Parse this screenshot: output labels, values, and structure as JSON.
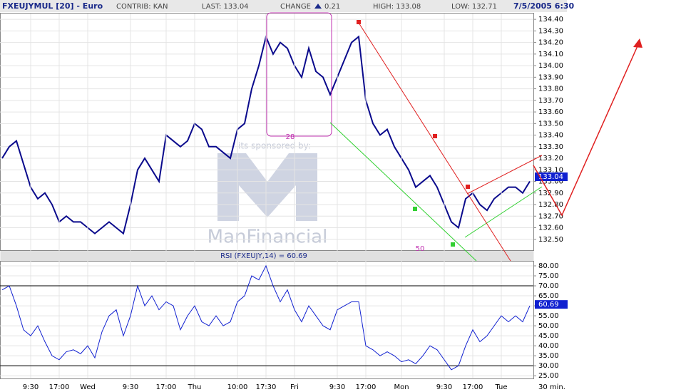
{
  "header": {
    "symbol": "FXEUJYMUL [20] - Euro",
    "contrib": "CONTRIB: KAN",
    "last": "LAST: 133.04",
    "change_label": "CHANGE",
    "change": "0.21",
    "high": "HIGH: 133.08",
    "low": "LOW: 132.71",
    "datetime": "7/5/2005 6:30"
  },
  "chart_data": [
    {
      "type": "line",
      "series": [
        {
          "name": "FXEUJYMUL",
          "color": "#0a0a8c",
          "values": [
            133.2,
            133.3,
            133.35,
            133.15,
            132.95,
            132.85,
            132.9,
            132.8,
            132.65,
            132.7,
            132.65,
            132.65,
            132.6,
            132.55,
            132.6,
            132.65,
            132.6,
            132.55,
            132.8,
            133.1,
            133.2,
            133.1,
            133.0,
            133.4,
            133.35,
            133.3,
            133.35,
            133.5,
            133.45,
            133.3,
            133.3,
            133.25,
            133.2,
            133.45,
            133.5,
            133.8,
            134.0,
            134.25,
            134.1,
            134.2,
            134.15,
            134.0,
            133.9,
            134.15,
            133.95,
            133.9,
            133.75,
            133.9,
            134.05,
            134.2,
            134.25,
            133.7,
            133.5,
            133.4,
            133.45,
            133.3,
            133.2,
            133.1,
            132.95,
            133.0,
            133.05,
            132.95,
            132.8,
            132.65,
            132.6,
            132.85,
            132.9,
            132.8,
            132.75,
            132.85,
            132.9,
            132.95,
            132.95,
            132.9,
            133.0
          ]
        }
      ],
      "ylim": [
        132.4,
        134.45
      ],
      "yticks": [
        {
          "value": 132.5,
          "label": "132.50"
        },
        {
          "value": 132.6,
          "label": "132.60"
        },
        {
          "value": 132.7,
          "label": "132.70"
        },
        {
          "value": 132.8,
          "label": "132.80"
        },
        {
          "value": 132.9,
          "label": "132.90"
        },
        {
          "value": 133.0,
          "label": "133.00"
        },
        {
          "value": 133.1,
          "label": "133.10"
        },
        {
          "value": 133.2,
          "label": "133.20"
        },
        {
          "value": 133.3,
          "label": "133.30"
        },
        {
          "value": 133.4,
          "label": "133.40"
        },
        {
          "value": 133.5,
          "label": "133.50"
        },
        {
          "value": 133.6,
          "label": "133.60"
        },
        {
          "value": 133.7,
          "label": "133.70"
        },
        {
          "value": 133.8,
          "label": "133.80"
        },
        {
          "value": 133.9,
          "label": "133.90"
        },
        {
          "value": 134.0,
          "label": "134.00"
        },
        {
          "value": 134.1,
          "label": "134.10"
        },
        {
          "value": 134.2,
          "label": "134.20"
        },
        {
          "value": 134.3,
          "label": "134.30"
        },
        {
          "value": 134.4,
          "label": "134.40"
        }
      ],
      "last_marker": {
        "value": 133.04,
        "label": "133.04"
      },
      "grid": true
    },
    {
      "type": "line",
      "title": "RSI (FXEUJY,14) = 60.69",
      "categories": [
        null,
        null,
        null,
        null,
        "9:30",
        null,
        null,
        null,
        "17:00",
        null,
        null,
        null,
        "Wed",
        null,
        null,
        null,
        null,
        null,
        "9:30",
        null,
        null,
        null,
        null,
        "17:00",
        null,
        null,
        null,
        "Thu",
        null,
        null,
        null,
        null,
        null,
        "10:00",
        null,
        null,
        null,
        "17:30",
        null,
        null,
        null,
        "Fri",
        null,
        null,
        null,
        null,
        null,
        "9:30",
        null,
        null,
        null,
        "17:00",
        null,
        null,
        null,
        null,
        "Mon",
        null,
        null,
        null,
        null,
        null,
        "9:30",
        null,
        null,
        null,
        "17:00",
        null,
        null,
        null,
        "Tue",
        null,
        null,
        null,
        null
      ],
      "series": [
        {
          "name": "RSI",
          "color": "#1020d0",
          "values": [
            68,
            70,
            60,
            48,
            45,
            50,
            42,
            35,
            33,
            37,
            38,
            36,
            40,
            34,
            47,
            55,
            58,
            45,
            55,
            70,
            60,
            65,
            58,
            62,
            60,
            48,
            55,
            60,
            52,
            50,
            55,
            50,
            52,
            62,
            65,
            75,
            73,
            80,
            70,
            62,
            68,
            58,
            52,
            60,
            55,
            50,
            48,
            58,
            60,
            62,
            62,
            40,
            38,
            35,
            37,
            35,
            32,
            33,
            31,
            35,
            40,
            38,
            33,
            28,
            30,
            40,
            48,
            42,
            45,
            50,
            55,
            52,
            55,
            52,
            60
          ]
        }
      ],
      "ylim": [
        24,
        82.5
      ],
      "yticks": [
        {
          "value": 25,
          "label": "25.00"
        },
        {
          "value": 30,
          "label": "30.00"
        },
        {
          "value": 35,
          "label": "35.00"
        },
        {
          "value": 40,
          "label": "40.00"
        },
        {
          "value": 45,
          "label": "45.00"
        },
        {
          "value": 50,
          "label": "50.00"
        },
        {
          "value": 55,
          "label": "55.00"
        },
        {
          "value": 60,
          "label": "60.00"
        },
        {
          "value": 65,
          "label": "65.00"
        },
        {
          "value": 70,
          "label": "70.00"
        },
        {
          "value": 75,
          "label": "75.00"
        },
        {
          "value": 80,
          "label": "80.00"
        }
      ],
      "hlines": [
        70,
        30
      ],
      "last_marker": {
        "value": 60.69,
        "label": "60.69"
      },
      "interval_label": "30 min.",
      "grid": true
    }
  ],
  "annotations": {
    "box_label": "28",
    "point_label": "50",
    "watermark_caption": "its sponsored by:",
    "watermark_brand": "ManFinancial"
  }
}
